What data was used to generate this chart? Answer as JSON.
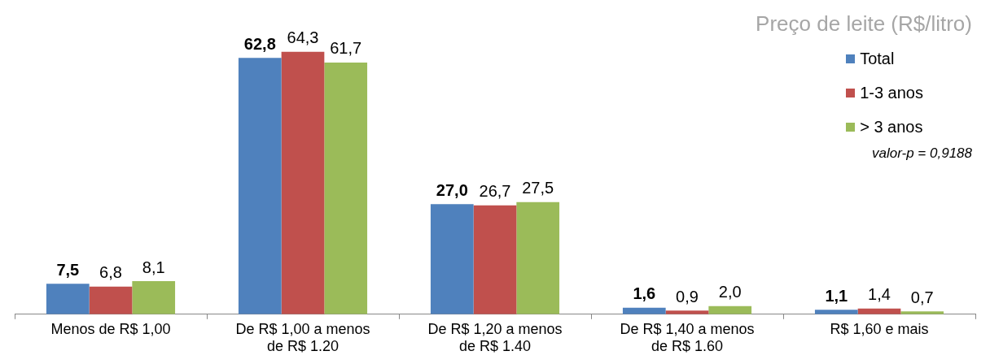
{
  "chart_data": {
    "type": "bar",
    "title": "Preço de leite (R$/litro)",
    "categories": [
      "Menos de R$ 1,00",
      "De R$ 1,00 a menos de R$ 1.20",
      "De R$ 1,20 a menos de R$ 1.40",
      "De R$ 1,40 a menos de R$ 1.60",
      "R$ 1,60 e mais"
    ],
    "series": [
      {
        "name": "Total",
        "color": "#4f81bd",
        "values": [
          7.5,
          62.8,
          27.0,
          1.6,
          1.1
        ],
        "value_labels": [
          "7,5",
          "62,8",
          "27,0",
          "1,6",
          "1,1"
        ]
      },
      {
        "name": "1-3 anos",
        "color": "#c0504d",
        "values": [
          6.8,
          64.3,
          26.7,
          0.9,
          1.4
        ],
        "value_labels": [
          "6,8",
          "64,3",
          "26,7",
          "0,9",
          "1,4"
        ]
      },
      {
        "name": "> 3 anos",
        "color": "#9bbb59",
        "values": [
          8.1,
          61.7,
          27.5,
          2.0,
          0.7
        ],
        "value_labels": [
          "8,1",
          "61,7",
          "27,5",
          "2,0",
          "0,7"
        ]
      }
    ],
    "annotations": [
      "valor-p = 0,9188"
    ],
    "legend": "top right"
  }
}
